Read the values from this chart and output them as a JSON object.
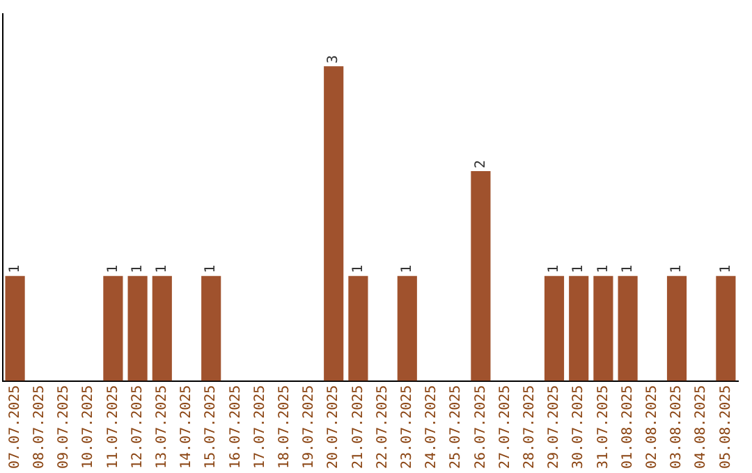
{
  "chart_data": {
    "type": "bar",
    "categories": [
      "07.07.2025",
      "08.07.2025",
      "09.07.2025",
      "10.07.2025",
      "11.07.2025",
      "12.07.2025",
      "13.07.2025",
      "14.07.2025",
      "15.07.2025",
      "16.07.2025",
      "17.07.2025",
      "18.07.2025",
      "19.07.2025",
      "20.07.2025",
      "21.07.2025",
      "22.07.2025",
      "23.07.2025",
      "24.07.2025",
      "25.07.2025",
      "26.07.2025",
      "27.07.2025",
      "28.07.2025",
      "29.07.2025",
      "30.07.2025",
      "31.07.2025",
      "01.08.2025",
      "02.08.2025",
      "03.08.2025",
      "04.08.2025",
      "05.08.2025"
    ],
    "values": [
      1,
      0,
      0,
      0,
      1,
      1,
      1,
      0,
      1,
      0,
      0,
      0,
      0,
      3,
      1,
      0,
      1,
      0,
      0,
      2,
      0,
      0,
      1,
      1,
      1,
      1,
      0,
      1,
      0,
      1
    ],
    "value_labels": [
      "1",
      null,
      null,
      null,
      "1",
      "1",
      "1",
      null,
      "1",
      null,
      null,
      null,
      null,
      "3",
      "1",
      null,
      "1",
      null,
      null,
      "2",
      null,
      null,
      "1",
      "1",
      "1",
      "1",
      null,
      "1",
      null,
      "1"
    ],
    "color": "#a0522d",
    "tick_labels": "x",
    "grid": false,
    "legend": false
  }
}
